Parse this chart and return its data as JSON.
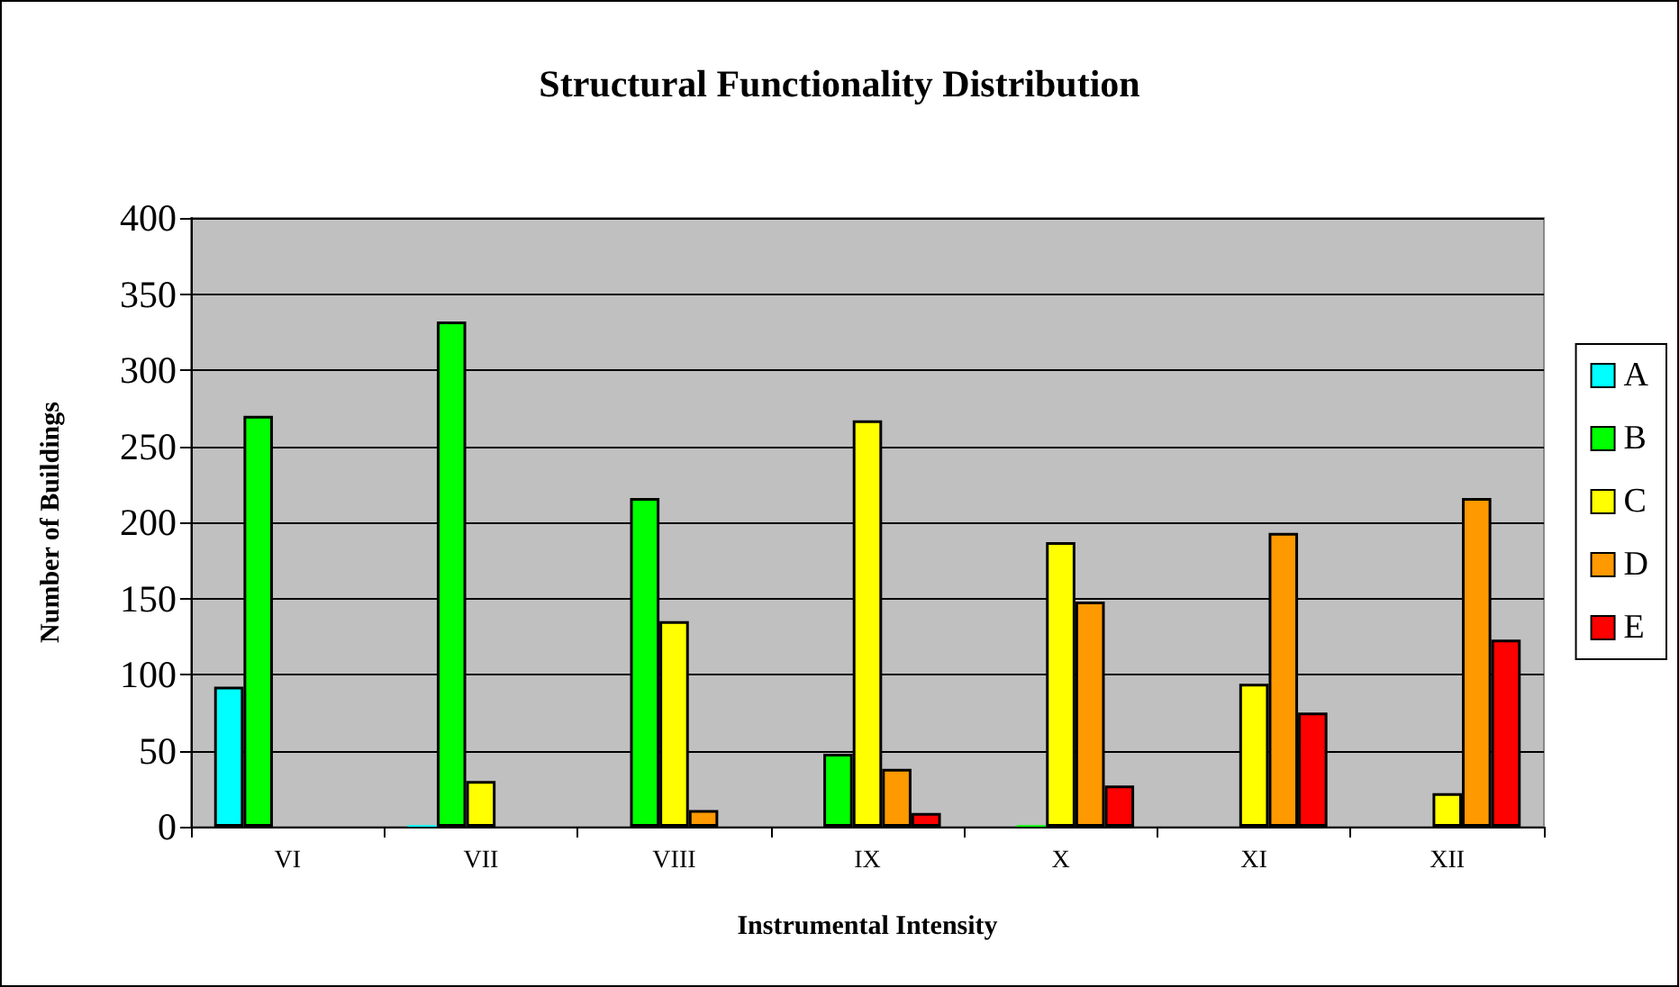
{
  "chart_data": {
    "type": "bar",
    "title": "Structural Functionality Distribution",
    "xlabel": "Instrumental Intensity",
    "ylabel": "Number of Buildings",
    "categories": [
      "VI",
      "VII",
      "VIII",
      "IX",
      "X",
      "XI",
      "XII"
    ],
    "series": [
      {
        "name": "A",
        "color": "#00ffff",
        "values": [
          92,
          1,
          null,
          null,
          null,
          null,
          null
        ]
      },
      {
        "name": "B",
        "color": "#00ff00",
        "values": [
          270,
          332,
          216,
          48,
          1,
          null,
          null
        ]
      },
      {
        "name": "C",
        "color": "#ffff00",
        "values": [
          null,
          30,
          135,
          267,
          187,
          94,
          22
        ]
      },
      {
        "name": "D",
        "color": "#ff9900",
        "values": [
          null,
          null,
          11,
          38,
          148,
          193,
          216
        ]
      },
      {
        "name": "E",
        "color": "#ff0000",
        "values": [
          null,
          null,
          null,
          9,
          27,
          75,
          123
        ]
      }
    ],
    "ylim": [
      0,
      400
    ],
    "yticks": [
      0,
      50,
      100,
      150,
      200,
      250,
      300,
      350,
      400
    ],
    "grid": "y",
    "legend": "right"
  }
}
